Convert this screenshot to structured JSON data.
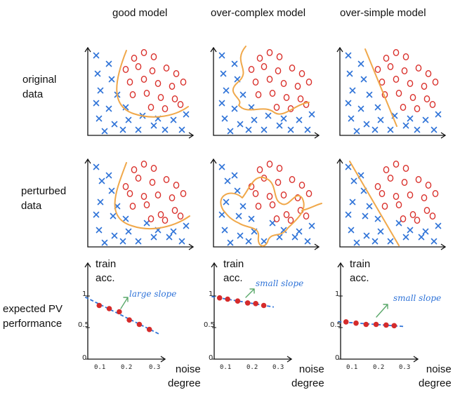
{
  "columns": {
    "good": "good model",
    "complex": "over-complex model",
    "simple": "over-simple model"
  },
  "rows": {
    "original": "original\ndata",
    "perturbed": "perturbed\ndata",
    "expected": "expected PV\nperformance"
  },
  "axes": {
    "train_label": "train\nacc.",
    "noise_label": "noise\ndegree",
    "y_ticks": [
      "1",
      "0.5",
      "0"
    ],
    "x_ticks": [
      "0.1",
      "0.2",
      "0.3"
    ]
  },
  "annotations": {
    "good": "large slope",
    "complex": "small slope",
    "simple": "small slope"
  },
  "legend_colors": {
    "cross": "#2f73d8",
    "circle": "#d9302b",
    "boundary": "#f0a84a",
    "trend": "#2f73d8",
    "point": "#d52b2b"
  },
  "chart_data": [
    {
      "type": "scatter",
      "title": "good model",
      "xlabel": "noise degree",
      "ylabel": "train acc.",
      "annotation": "large slope",
      "x": [
        0.05,
        0.1,
        0.15,
        0.2,
        0.25,
        0.3
      ],
      "y": [
        0.85,
        0.8,
        0.75,
        0.62,
        0.55,
        0.47
      ],
      "ylim": [
        0,
        1
      ],
      "trend": "linear"
    },
    {
      "type": "scatter",
      "title": "over-complex model",
      "xlabel": "noise degree",
      "ylabel": "train acc.",
      "annotation": "small slope",
      "x": [
        0.02,
        0.06,
        0.11,
        0.16,
        0.2,
        0.24
      ],
      "y": [
        0.97,
        0.95,
        0.92,
        0.89,
        0.88,
        0.85
      ],
      "ylim": [
        0,
        1
      ],
      "trend": "linear"
    },
    {
      "type": "scatter",
      "title": "over-simple model",
      "xlabel": "noise degree",
      "ylabel": "train acc.",
      "annotation": "small slope",
      "x": [
        0.02,
        0.07,
        0.12,
        0.17,
        0.22,
        0.26
      ],
      "y": [
        0.59,
        0.57,
        0.55,
        0.55,
        0.54,
        0.53
      ],
      "ylim": [
        0,
        1
      ],
      "trend": "linear"
    }
  ]
}
